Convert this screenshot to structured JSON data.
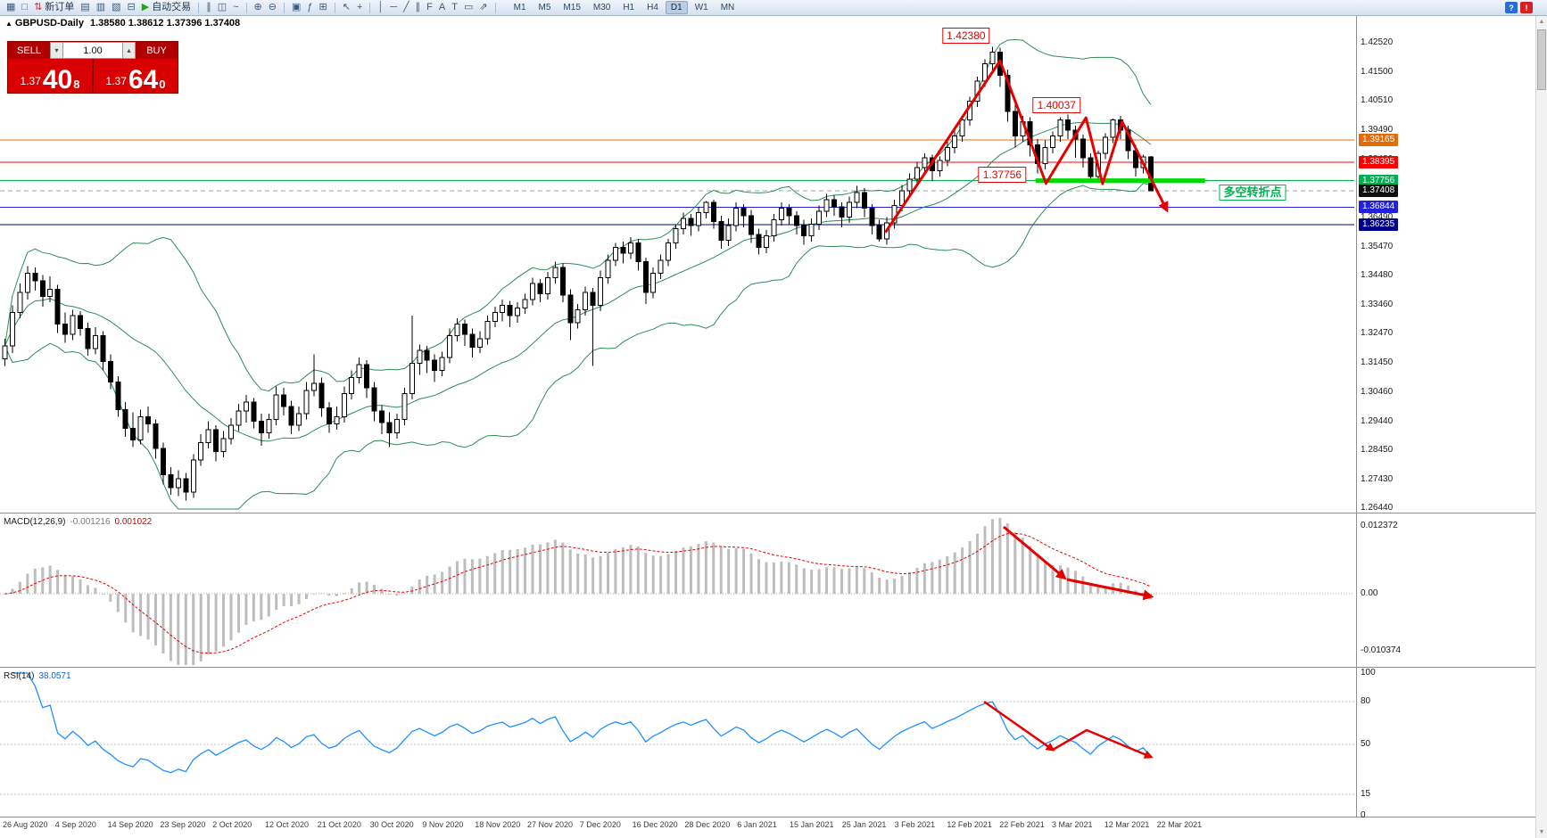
{
  "toolbar": {
    "items": [
      {
        "name": "charts-icon",
        "glyph": "▦"
      },
      {
        "name": "profiles-icon",
        "glyph": "□"
      },
      {
        "name": "new-order-button",
        "glyph": "⇅",
        "glyph_color": "#c03030",
        "label": "新订单"
      },
      {
        "name": "market-watch-icon",
        "glyph": "▤"
      },
      {
        "name": "data-window-icon",
        "glyph": "▥"
      },
      {
        "name": "navigator-icon",
        "glyph": "▧"
      },
      {
        "name": "terminal-icon",
        "glyph": "⊟"
      },
      {
        "name": "autotrade-button",
        "glyph": "▶",
        "glyph_color": "#1fa51f",
        "label": "自动交易"
      },
      {
        "type": "sep"
      },
      {
        "name": "bars-chart-icon",
        "glyph": "∥"
      },
      {
        "name": "candles-chart-icon",
        "glyph": "◫"
      },
      {
        "name": "line-chart-icon",
        "glyph": "~"
      },
      {
        "type": "sep"
      },
      {
        "name": "zoom-in-icon",
        "glyph": "⊕"
      },
      {
        "name": "zoom-out-icon",
        "glyph": "⊖"
      },
      {
        "type": "sep"
      },
      {
        "name": "tile-windows-icon",
        "glyph": "▣"
      },
      {
        "name": "indicators-icon",
        "glyph": "ƒ"
      },
      {
        "name": "new-window-icon",
        "glyph": "⊞"
      },
      {
        "type": "sep"
      },
      {
        "name": "cursor-icon",
        "glyph": "↖"
      },
      {
        "name": "crosshair-icon",
        "glyph": "+"
      },
      {
        "type": "sep"
      },
      {
        "name": "vertical-line-icon",
        "glyph": "│"
      },
      {
        "name": "horizontal-line-icon",
        "glyph": "─"
      },
      {
        "name": "trendline-icon",
        "glyph": "╱"
      },
      {
        "name": "channel-icon",
        "glyph": "∥"
      },
      {
        "name": "fibonacci-icon",
        "glyph": "F"
      },
      {
        "name": "text-icon",
        "glyph": "A"
      },
      {
        "name": "label-icon",
        "glyph": "T"
      },
      {
        "name": "shapes-icon",
        "glyph": "▭"
      },
      {
        "name": "arrows-icon",
        "glyph": "⇗"
      },
      {
        "type": "sep"
      }
    ],
    "timeframes": [
      "M1",
      "M5",
      "M15",
      "M30",
      "H1",
      "H4",
      "D1",
      "W1",
      "MN"
    ],
    "active_timeframe": "D1",
    "right_icons": [
      {
        "name": "help-icon",
        "glyph": "?"
      },
      {
        "name": "alert-icon",
        "glyph": "!"
      }
    ]
  },
  "chart": {
    "title_marker": "▲",
    "symbol": "GBPUSD-Daily",
    "ohlc": "1.38580 1.38612 1.37396 1.37408",
    "levels": [
      {
        "price": 1.39165,
        "color": "#E36C09"
      },
      {
        "price": 1.38395,
        "color": "#FF0000"
      },
      {
        "price": 1.37756,
        "color": "#00B050"
      },
      {
        "price": 1.36844,
        "color": "#2222DD"
      },
      {
        "price": 1.36235,
        "color": "#00008B"
      }
    ],
    "bid_line": {
      "price": 1.37408,
      "color": "#A0A0A0"
    },
    "support_segment": {
      "price": 1.37756,
      "from_index": 137,
      "to_index": 159.5,
      "color": "#00DC00",
      "width": 5
    }
  },
  "price_axis": {
    "scale": [
      "1.42520",
      "1.41500",
      "1.40510",
      "1.39490",
      "1.38480",
      "1.37460",
      "1.36490",
      "1.35470",
      "1.34480",
      "1.33460",
      "1.32470",
      "1.31450",
      "1.30460",
      "1.29440",
      "1.28450",
      "1.27430",
      "1.26440"
    ],
    "level_labels": [
      {
        "text": "1.39165",
        "bg": "#E36C09"
      },
      {
        "text": "1.38395",
        "bg": "#FF0000"
      },
      {
        "text": "1.37756",
        "bg": "#00B050"
      },
      {
        "text": "1.37408",
        "bg": "#101010"
      },
      {
        "text": "1.36844",
        "bg": "#2222DD"
      },
      {
        "text": "1.36235",
        "bg": "#00008B"
      }
    ]
  },
  "x_axis": {
    "labels": [
      "26 Aug 2020",
      "4 Sep 2020",
      "14 Sep 2020",
      "23 Sep 2020",
      "2 Oct 2020",
      "12 Oct 2020",
      "21 Oct 2020",
      "30 Oct 2020",
      "9 Nov 2020",
      "18 Nov 2020",
      "27 Nov 2020",
      "7 Dec 2020",
      "16 Dec 2020",
      "28 Dec 2020",
      "6 Jan 2021",
      "15 Jan 2021",
      "25 Jan 2021",
      "3 Feb 2021",
      "12 Feb 2021",
      "22 Feb 2021",
      "3 Mar 2021",
      "12 Mar 2021",
      "22 Mar 2021"
    ]
  },
  "trade_panel": {
    "sell_label": "SELL",
    "buy_label": "BUY",
    "lot": "1.00",
    "spin_up": "▴",
    "spin_down": "▾",
    "sell_small": "1.37",
    "sell_big": "40",
    "sell_sup": "8",
    "buy_small": "1.37",
    "buy_big": "64",
    "buy_sup": "0"
  },
  "indicators": {
    "macd": {
      "label": "MACD(12,26,9)",
      "value": "-0.001216",
      "signal": "0.001022",
      "axis": [
        "0.012372",
        "0.00",
        "-0.010374"
      ],
      "axis_values": [
        0.012372,
        0,
        -0.010374
      ]
    },
    "rsi": {
      "label": "RSI(14)",
      "value": "38.0571",
      "axis": [
        "100",
        "80",
        "50",
        "15",
        "0"
      ],
      "axis_values": [
        100,
        80,
        50,
        15,
        0
      ],
      "levels": [
        80,
        50,
        15
      ]
    }
  },
  "annotations": {
    "labels": [
      {
        "name": "peak-price-label",
        "text": "1.42380",
        "index": 127.5,
        "price": 1.4276,
        "style": "red"
      },
      {
        "name": "secondary-peak-label",
        "text": "1.40037",
        "index": 139.5,
        "price": 1.4035,
        "style": "red"
      },
      {
        "name": "support-price-label",
        "text": "1.37756",
        "index": 132.3,
        "price": 1.3795,
        "style": "red"
      },
      {
        "name": "turning-point-note",
        "text": "多空转折点",
        "index": 165.5,
        "price": 1.3733,
        "style": "green"
      }
    ],
    "main_path": [
      [
        116.8,
        1.3597
      ],
      [
        132,
        1.419
      ],
      [
        138.1,
        1.3766
      ],
      [
        143.4,
        1.3993
      ],
      [
        145.6,
        1.3765
      ],
      [
        148.2,
        1.398
      ],
      [
        154.1,
        1.3675
      ]
    ],
    "macd_arrows": [
      [
        [
          1125,
          13
        ],
        [
          1193,
          70
        ]
      ],
      [
        [
          1196,
          72
        ],
        [
          1290,
          91
        ]
      ]
    ],
    "rsi_arrows": [
      [
        [
          1103,
          36
        ],
        [
          1180,
          90
        ]
      ],
      [
        [
          1180,
          90
        ],
        [
          1218,
          68
        ],
        [
          1290,
          98
        ]
      ]
    ]
  },
  "chart_data": {
    "type": "candlestick",
    "symbol": "GBPUSD",
    "timeframe": "Daily",
    "y_range": [
      1.2644,
      1.4252
    ],
    "overlays": {
      "bollinger": {
        "period": 20,
        "deviation": 2,
        "color": "#2E8B57"
      }
    },
    "candles": [
      [
        1.316,
        1.323,
        1.3135,
        1.3205
      ],
      [
        1.3205,
        1.3345,
        1.318,
        1.332
      ],
      [
        1.332,
        1.342,
        1.33,
        1.339
      ],
      [
        1.339,
        1.348,
        1.3365,
        1.3455
      ],
      [
        1.3455,
        1.3475,
        1.3395,
        1.343
      ],
      [
        1.343,
        1.345,
        1.334,
        1.3375
      ],
      [
        1.3375,
        1.3445,
        1.3355,
        1.34
      ],
      [
        1.34,
        1.3415,
        1.325,
        1.328
      ],
      [
        1.328,
        1.332,
        1.3215,
        1.3245
      ],
      [
        1.3245,
        1.333,
        1.3225,
        1.331
      ],
      [
        1.331,
        1.3325,
        1.324,
        1.3265
      ],
      [
        1.3265,
        1.3285,
        1.317,
        1.3195
      ],
      [
        1.3195,
        1.327,
        1.3175,
        1.324
      ],
      [
        1.324,
        1.3255,
        1.312,
        1.315
      ],
      [
        1.315,
        1.3175,
        1.3055,
        1.308
      ],
      [
        1.308,
        1.31,
        1.296,
        1.2985
      ],
      [
        1.2985,
        1.301,
        1.289,
        1.292
      ],
      [
        1.292,
        1.2975,
        1.2855,
        1.288
      ],
      [
        1.288,
        1.2985,
        1.2865,
        1.296
      ],
      [
        1.296,
        1.2995,
        1.2905,
        1.2935
      ],
      [
        1.2935,
        1.295,
        1.2815,
        1.285
      ],
      [
        1.285,
        1.287,
        1.2725,
        1.276
      ],
      [
        1.276,
        1.2785,
        1.269,
        1.2715
      ],
      [
        1.2715,
        1.2775,
        1.2685,
        1.2745
      ],
      [
        1.2745,
        1.2765,
        1.267,
        1.27
      ],
      [
        1.27,
        1.283,
        1.268,
        1.281
      ],
      [
        1.281,
        1.29,
        1.279,
        1.287
      ],
      [
        1.287,
        1.2945,
        1.285,
        1.2915
      ],
      [
        1.2915,
        1.293,
        1.2805,
        1.284
      ],
      [
        1.284,
        1.291,
        1.282,
        1.2885
      ],
      [
        1.2885,
        1.2955,
        1.2865,
        1.293
      ],
      [
        1.293,
        1.3005,
        1.291,
        1.298
      ],
      [
        1.298,
        1.3035,
        1.294,
        1.301
      ],
      [
        1.301,
        1.3025,
        1.292,
        1.2945
      ],
      [
        1.2945,
        1.297,
        1.286,
        1.2905
      ],
      [
        1.2905,
        1.297,
        1.2885,
        1.295
      ],
      [
        1.295,
        1.3065,
        1.293,
        1.3035
      ],
      [
        1.3035,
        1.306,
        1.2965,
        1.2995
      ],
      [
        1.2995,
        1.3015,
        1.29,
        1.293
      ],
      [
        1.293,
        1.2995,
        1.291,
        1.297
      ],
      [
        1.297,
        1.308,
        1.295,
        1.305
      ],
      [
        1.305,
        1.3175,
        1.303,
        1.3075
      ],
      [
        1.3075,
        1.3095,
        1.296,
        1.299
      ],
      [
        1.299,
        1.301,
        1.2905,
        1.2935
      ],
      [
        1.2935,
        1.2995,
        1.2915,
        1.296
      ],
      [
        1.296,
        1.3065,
        1.294,
        1.304
      ],
      [
        1.304,
        1.312,
        1.302,
        1.3095
      ],
      [
        1.3095,
        1.3165,
        1.3075,
        1.314
      ],
      [
        1.314,
        1.3155,
        1.3025,
        1.306
      ],
      [
        1.306,
        1.308,
        1.2945,
        1.298
      ],
      [
        1.298,
        1.3,
        1.29,
        1.294
      ],
      [
        1.294,
        1.2975,
        1.2855,
        1.2905
      ],
      [
        1.2905,
        1.297,
        1.2885,
        1.295
      ],
      [
        1.295,
        1.306,
        1.293,
        1.304
      ],
      [
        1.304,
        1.331,
        1.302,
        1.3145
      ],
      [
        1.3145,
        1.321,
        1.3105,
        1.319
      ],
      [
        1.319,
        1.3205,
        1.311,
        1.3155
      ],
      [
        1.3155,
        1.3175,
        1.308,
        1.312
      ],
      [
        1.312,
        1.3185,
        1.31,
        1.3165
      ],
      [
        1.3165,
        1.3265,
        1.3145,
        1.324
      ],
      [
        1.324,
        1.33,
        1.322,
        1.328
      ],
      [
        1.328,
        1.3295,
        1.3205,
        1.3245
      ],
      [
        1.3245,
        1.3265,
        1.3165,
        1.32
      ],
      [
        1.32,
        1.3255,
        1.318,
        1.323
      ],
      [
        1.323,
        1.331,
        1.321,
        1.329
      ],
      [
        1.329,
        1.334,
        1.327,
        1.332
      ],
      [
        1.332,
        1.3365,
        1.329,
        1.3345
      ],
      [
        1.3345,
        1.336,
        1.327,
        1.331
      ],
      [
        1.331,
        1.3355,
        1.3285,
        1.3335
      ],
      [
        1.3335,
        1.3385,
        1.3315,
        1.3365
      ],
      [
        1.3365,
        1.344,
        1.3345,
        1.342
      ],
      [
        1.342,
        1.3435,
        1.3355,
        1.3385
      ],
      [
        1.3385,
        1.346,
        1.3365,
        1.344
      ],
      [
        1.344,
        1.3495,
        1.342,
        1.3475
      ],
      [
        1.3475,
        1.349,
        1.3355,
        1.338
      ],
      [
        1.338,
        1.34,
        1.3225,
        1.3285
      ],
      [
        1.3285,
        1.335,
        1.3265,
        1.333
      ],
      [
        1.333,
        1.341,
        1.331,
        1.339
      ],
      [
        1.339,
        1.3405,
        1.3135,
        1.3345
      ],
      [
        1.3345,
        1.3465,
        1.3325,
        1.344
      ],
      [
        1.344,
        1.352,
        1.342,
        1.35
      ],
      [
        1.35,
        1.356,
        1.348,
        1.3545
      ],
      [
        1.3545,
        1.3565,
        1.349,
        1.3525
      ],
      [
        1.3525,
        1.358,
        1.3505,
        1.356
      ],
      [
        1.356,
        1.3575,
        1.3465,
        1.3495
      ],
      [
        1.3495,
        1.351,
        1.335,
        1.339
      ],
      [
        1.339,
        1.3475,
        1.337,
        1.3455
      ],
      [
        1.3455,
        1.352,
        1.3435,
        1.35
      ],
      [
        1.35,
        1.3575,
        1.348,
        1.356
      ],
      [
        1.356,
        1.3625,
        1.354,
        1.361
      ],
      [
        1.361,
        1.3665,
        1.359,
        1.3645
      ],
      [
        1.3645,
        1.366,
        1.3585,
        1.362
      ],
      [
        1.362,
        1.3685,
        1.36,
        1.3665
      ],
      [
        1.3665,
        1.3705,
        1.3645,
        1.37
      ],
      [
        1.37,
        1.371,
        1.361,
        1.3635
      ],
      [
        1.3635,
        1.3655,
        1.354,
        1.357
      ],
      [
        1.357,
        1.3645,
        1.355,
        1.362
      ],
      [
        1.362,
        1.37,
        1.36,
        1.368
      ],
      [
        1.368,
        1.3695,
        1.3615,
        1.3655
      ],
      [
        1.3655,
        1.3675,
        1.356,
        1.359
      ],
      [
        1.359,
        1.361,
        1.352,
        1.3545
      ],
      [
        1.3545,
        1.3605,
        1.3525,
        1.3585
      ],
      [
        1.3585,
        1.366,
        1.3565,
        1.364
      ],
      [
        1.364,
        1.37,
        1.362,
        1.368
      ],
      [
        1.368,
        1.3695,
        1.3625,
        1.3655
      ],
      [
        1.3655,
        1.367,
        1.359,
        1.362
      ],
      [
        1.362,
        1.364,
        1.3555,
        1.3585
      ],
      [
        1.3585,
        1.3645,
        1.3565,
        1.3625
      ],
      [
        1.3625,
        1.369,
        1.3605,
        1.367
      ],
      [
        1.367,
        1.373,
        1.365,
        1.371
      ],
      [
        1.371,
        1.3725,
        1.3655,
        1.3685
      ],
      [
        1.3685,
        1.37,
        1.3615,
        1.365
      ],
      [
        1.365,
        1.372,
        1.363,
        1.37
      ],
      [
        1.37,
        1.3758,
        1.368,
        1.3735
      ],
      [
        1.3735,
        1.375,
        1.365,
        1.368
      ],
      [
        1.368,
        1.3695,
        1.359,
        1.362
      ],
      [
        1.362,
        1.364,
        1.3565,
        1.3575
      ],
      [
        1.3575,
        1.365,
        1.3555,
        1.363
      ],
      [
        1.363,
        1.371,
        1.361,
        1.369
      ],
      [
        1.369,
        1.376,
        1.367,
        1.374
      ],
      [
        1.374,
        1.38,
        1.372,
        1.378
      ],
      [
        1.378,
        1.384,
        1.376,
        1.382
      ],
      [
        1.382,
        1.387,
        1.38,
        1.3855
      ],
      [
        1.3855,
        1.3865,
        1.3775,
        1.381
      ],
      [
        1.381,
        1.386,
        1.379,
        1.3845
      ],
      [
        1.3845,
        1.391,
        1.3825,
        1.389
      ],
      [
        1.389,
        1.395,
        1.387,
        1.393
      ],
      [
        1.393,
        1.4,
        1.391,
        1.3985
      ],
      [
        1.3985,
        1.4065,
        1.3965,
        1.405
      ],
      [
        1.405,
        1.4135,
        1.403,
        1.412
      ],
      [
        1.412,
        1.4195,
        1.41,
        1.418
      ],
      [
        1.418,
        1.4238,
        1.415,
        1.422
      ],
      [
        1.422,
        1.4235,
        1.41,
        1.414
      ],
      [
        1.414,
        1.416,
        1.398,
        1.4015
      ],
      [
        1.4015,
        1.404,
        1.389,
        1.393
      ],
      [
        1.393,
        1.4,
        1.391,
        1.398
      ],
      [
        1.398,
        1.3995,
        1.386,
        1.39
      ],
      [
        1.39,
        1.392,
        1.38,
        1.3835
      ],
      [
        1.3835,
        1.3915,
        1.3815,
        1.389
      ],
      [
        1.389,
        1.3945,
        1.387,
        1.393
      ],
      [
        1.393,
        1.3995,
        1.391,
        1.3985
      ],
      [
        1.3985,
        1.4004,
        1.392,
        1.395
      ],
      [
        1.395,
        1.3965,
        1.3855,
        1.392
      ],
      [
        1.392,
        1.3935,
        1.382,
        1.3855
      ],
      [
        1.3855,
        1.387,
        1.3776,
        1.379
      ],
      [
        1.379,
        1.388,
        1.377,
        1.387
      ],
      [
        1.387,
        1.394,
        1.385,
        1.3925
      ],
      [
        1.3925,
        1.399,
        1.3905,
        1.3985
      ],
      [
        1.3985,
        1.4,
        1.392,
        1.395
      ],
      [
        1.395,
        1.3965,
        1.385,
        1.388
      ],
      [
        1.388,
        1.39,
        1.379,
        1.382
      ],
      [
        1.382,
        1.3865,
        1.38,
        1.3858
      ],
      [
        1.3858,
        1.38612,
        1.37396,
        1.37408
      ]
    ]
  },
  "ui": {
    "scroll_up": "▲",
    "scroll_down": "▼"
  }
}
